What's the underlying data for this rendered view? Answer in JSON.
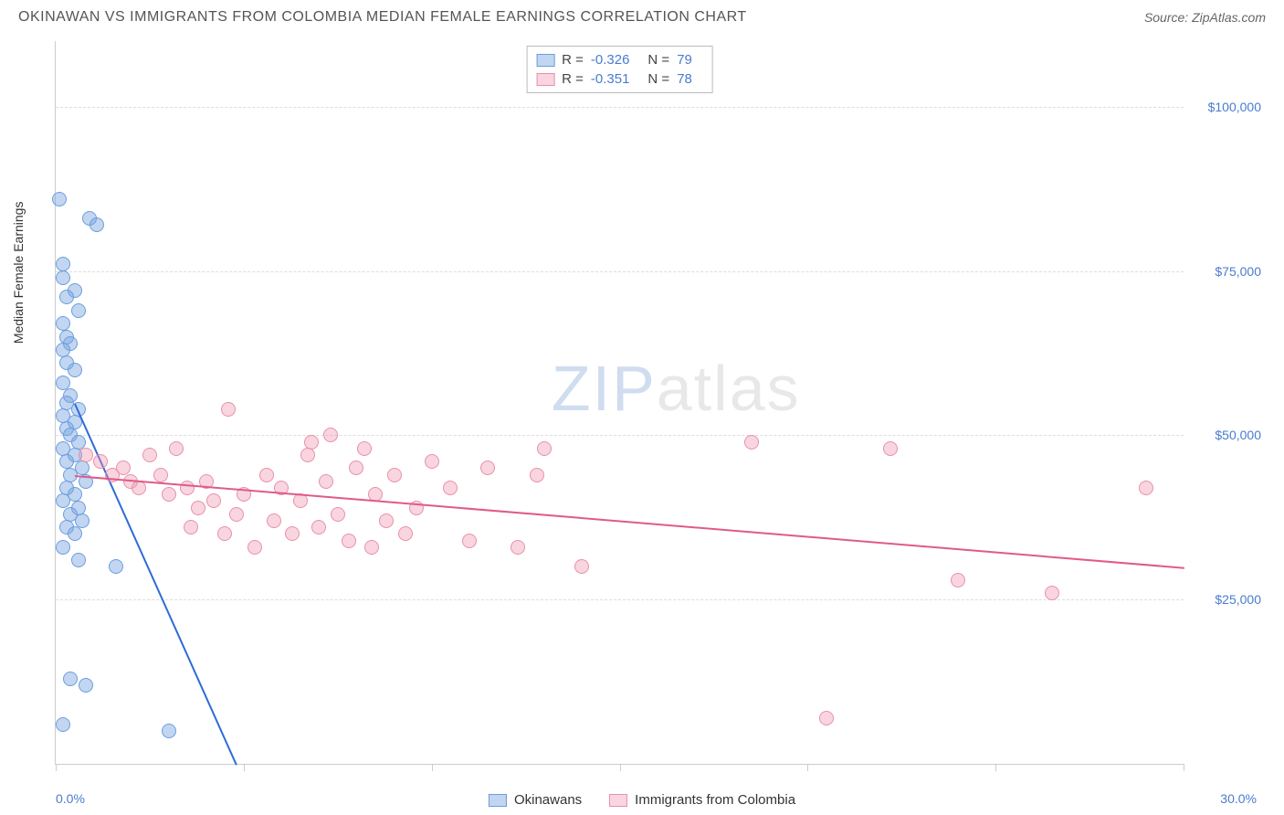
{
  "header": {
    "title": "OKINAWAN VS IMMIGRANTS FROM COLOMBIA MEDIAN FEMALE EARNINGS CORRELATION CHART",
    "source": "Source: ZipAtlas.com"
  },
  "chart": {
    "type": "scatter",
    "y_axis_label": "Median Female Earnings",
    "x_min": 0.0,
    "x_max": 30.0,
    "x_left_label": "0.0%",
    "x_right_label": "30.0%",
    "y_min": 0,
    "y_max": 110000,
    "y_ticks": [
      25000,
      50000,
      75000,
      100000
    ],
    "y_tick_labels": [
      "$25,000",
      "$50,000",
      "$75,000",
      "$100,000"
    ],
    "x_tick_positions": [
      0,
      5,
      10,
      15,
      20,
      25,
      30
    ],
    "grid_color": "#dddddd",
    "background_color": "#ffffff",
    "series": [
      {
        "name": "Okinawans",
        "fill": "rgba(120,165,225,0.45)",
        "stroke": "#6a9de0",
        "line_color": "#2e6bd6",
        "r_value": "-0.326",
        "n_value": "79",
        "trend": {
          "x1": 0.5,
          "y1": 55000,
          "x2": 4.8,
          "y2": 0
        },
        "points": [
          [
            0.1,
            86000
          ],
          [
            0.9,
            83000
          ],
          [
            1.1,
            82000
          ],
          [
            0.2,
            76000
          ],
          [
            0.2,
            74000
          ],
          [
            0.5,
            72000
          ],
          [
            0.3,
            71000
          ],
          [
            0.6,
            69000
          ],
          [
            0.2,
            67000
          ],
          [
            0.3,
            65000
          ],
          [
            0.4,
            64000
          ],
          [
            0.2,
            63000
          ],
          [
            0.3,
            61000
          ],
          [
            0.5,
            60000
          ],
          [
            0.2,
            58000
          ],
          [
            0.4,
            56000
          ],
          [
            0.3,
            55000
          ],
          [
            0.6,
            54000
          ],
          [
            0.2,
            53000
          ],
          [
            0.5,
            52000
          ],
          [
            0.3,
            51000
          ],
          [
            0.4,
            50000
          ],
          [
            0.6,
            49000
          ],
          [
            0.2,
            48000
          ],
          [
            0.5,
            47000
          ],
          [
            0.3,
            46000
          ],
          [
            0.7,
            45000
          ],
          [
            0.4,
            44000
          ],
          [
            0.8,
            43000
          ],
          [
            0.3,
            42000
          ],
          [
            0.5,
            41000
          ],
          [
            0.2,
            40000
          ],
          [
            0.6,
            39000
          ],
          [
            0.4,
            38000
          ],
          [
            0.7,
            37000
          ],
          [
            0.3,
            36000
          ],
          [
            0.5,
            35000
          ],
          [
            0.2,
            33000
          ],
          [
            0.6,
            31000
          ],
          [
            1.6,
            30000
          ],
          [
            0.4,
            13000
          ],
          [
            0.8,
            12000
          ],
          [
            0.2,
            6000
          ],
          [
            3.0,
            5000
          ]
        ]
      },
      {
        "name": "Immigrants from Colombia",
        "fill": "rgba(240,150,175,0.40)",
        "stroke": "#e890ac",
        "line_color": "#e05a8a",
        "r_value": "-0.351",
        "n_value": "78",
        "trend": {
          "x1": 0.5,
          "y1": 44000,
          "x2": 30,
          "y2": 30000
        },
        "points": [
          [
            0.8,
            47000
          ],
          [
            1.2,
            46000
          ],
          [
            1.5,
            44000
          ],
          [
            1.8,
            45000
          ],
          [
            2.0,
            43000
          ],
          [
            2.2,
            42000
          ],
          [
            2.5,
            47000
          ],
          [
            2.8,
            44000
          ],
          [
            3.0,
            41000
          ],
          [
            3.2,
            48000
          ],
          [
            3.5,
            42000
          ],
          [
            3.6,
            36000
          ],
          [
            3.8,
            39000
          ],
          [
            4.0,
            43000
          ],
          [
            4.2,
            40000
          ],
          [
            4.5,
            35000
          ],
          [
            4.6,
            54000
          ],
          [
            4.8,
            38000
          ],
          [
            5.0,
            41000
          ],
          [
            5.3,
            33000
          ],
          [
            5.6,
            44000
          ],
          [
            5.8,
            37000
          ],
          [
            6.0,
            42000
          ],
          [
            6.3,
            35000
          ],
          [
            6.5,
            40000
          ],
          [
            6.7,
            47000
          ],
          [
            6.8,
            49000
          ],
          [
            7.0,
            36000
          ],
          [
            7.2,
            43000
          ],
          [
            7.3,
            50000
          ],
          [
            7.5,
            38000
          ],
          [
            7.8,
            34000
          ],
          [
            8.0,
            45000
          ],
          [
            8.2,
            48000
          ],
          [
            8.4,
            33000
          ],
          [
            8.5,
            41000
          ],
          [
            8.8,
            37000
          ],
          [
            9.0,
            44000
          ],
          [
            9.3,
            35000
          ],
          [
            9.6,
            39000
          ],
          [
            10.0,
            46000
          ],
          [
            10.5,
            42000
          ],
          [
            11.0,
            34000
          ],
          [
            11.5,
            45000
          ],
          [
            12.3,
            33000
          ],
          [
            12.8,
            44000
          ],
          [
            13.0,
            48000
          ],
          [
            14.0,
            30000
          ],
          [
            18.5,
            49000
          ],
          [
            20.5,
            7000
          ],
          [
            22.2,
            48000
          ],
          [
            24.0,
            28000
          ],
          [
            26.5,
            26000
          ],
          [
            29.0,
            42000
          ]
        ]
      }
    ],
    "watermark": {
      "zip": "ZIP",
      "atlas": "atlas"
    },
    "legend_bottom": [
      "Okinawans",
      "Immigrants from Colombia"
    ]
  }
}
